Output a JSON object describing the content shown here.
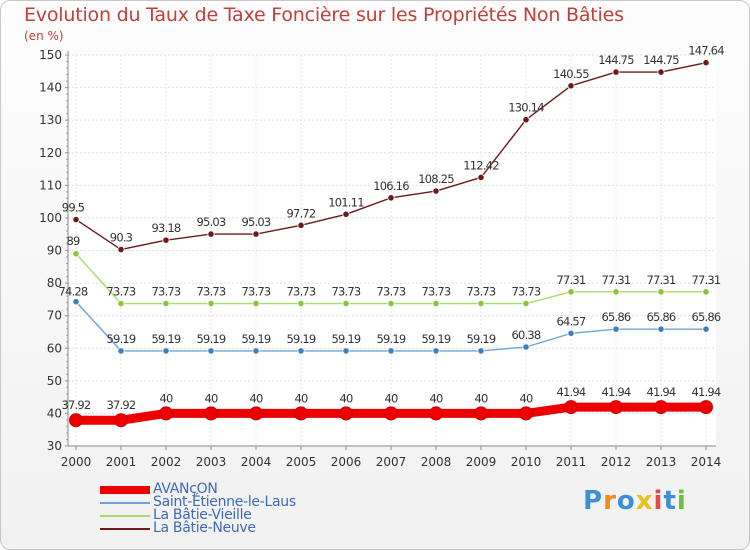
{
  "chart_data": {
    "type": "line",
    "title": "Evolution du Taux de Taxe Foncière sur les Propriétés Non Bâties",
    "ylabel": "(en %)",
    "xlabel": "",
    "categories": [
      "2000",
      "2001",
      "2002",
      "2003",
      "2004",
      "2005",
      "2006",
      "2007",
      "2008",
      "2009",
      "2010",
      "2011",
      "2012",
      "2013",
      "2014"
    ],
    "ylim": [
      30,
      150
    ],
    "yticks": [
      30,
      40,
      50,
      60,
      70,
      80,
      90,
      100,
      110,
      120,
      130,
      140,
      150
    ],
    "grid": true,
    "legend_position": "bottom-left",
    "series": [
      {
        "name": "La Bâtie-Neuve",
        "color": "#6e1a1a",
        "marker_color": "#6e1a1a",
        "line_style": "thin",
        "values": [
          99.5,
          90.3,
          93.18,
          95.03,
          95.03,
          97.72,
          101.11,
          106.16,
          108.25,
          112.42,
          130.14,
          140.55,
          144.75,
          144.75,
          147.64
        ],
        "labels": [
          "99.5",
          "90.3",
          "93.18",
          "95.03",
          "95.03",
          "97.72",
          "101.11",
          "106.16",
          "108.25",
          "112.42",
          "130.14",
          "140.55",
          "144.75",
          "144.75",
          "147.64"
        ]
      },
      {
        "name": "La Bâtie-Vieille",
        "color": "#a6dc6e",
        "marker_color": "#86c63e",
        "line_style": "thin",
        "values": [
          89,
          73.73,
          73.73,
          73.73,
          73.73,
          73.73,
          73.73,
          73.73,
          73.73,
          73.73,
          73.73,
          77.31,
          77.31,
          77.31,
          77.31
        ],
        "labels": [
          "89",
          "73.73",
          "73.73",
          "73.73",
          "73.73",
          "73.73",
          "73.73",
          "73.73",
          "73.73",
          "73.73",
          "73.73",
          "77.31",
          "77.31",
          "77.31",
          "77.31"
        ]
      },
      {
        "name": "Saint-Étienne-le-Laus",
        "color": "#6fa3d6",
        "marker_color": "#3f7fc0",
        "line_style": "thin",
        "values": [
          74.28,
          59.19,
          59.19,
          59.19,
          59.19,
          59.19,
          59.19,
          59.19,
          59.19,
          59.19,
          60.38,
          64.57,
          65.86,
          65.86,
          65.86
        ],
        "labels": [
          "74.28",
          "59.19",
          "59.19",
          "59.19",
          "59.19",
          "59.19",
          "59.19",
          "59.19",
          "59.19",
          "59.19",
          "60.38",
          "64.57",
          "65.86",
          "65.86",
          "65.86"
        ]
      },
      {
        "name": "AVANçON",
        "color": "#ee0000",
        "marker_color": "#ee0000",
        "line_style": "thick",
        "values": [
          37.92,
          37.92,
          40,
          40,
          40,
          40,
          40,
          40,
          40,
          40,
          40,
          41.94,
          41.94,
          41.94,
          41.94
        ],
        "labels": [
          "37.92",
          "37.92",
          "40",
          "40",
          "40",
          "40",
          "40",
          "40",
          "40",
          "40",
          "40",
          "41.94",
          "41.94",
          "41.94",
          "41.94"
        ]
      }
    ]
  },
  "legend": [
    {
      "label": "AVANçON",
      "color": "#ee0000",
      "thick": true
    },
    {
      "label": "Saint-Étienne-le-Laus",
      "color": "#6fa3d6",
      "thick": false
    },
    {
      "label": "La Bâtie-Vieille",
      "color": "#a6dc6e",
      "thick": false
    },
    {
      "label": "La Bâtie-Neuve",
      "color": "#6e1a1a",
      "thick": false
    }
  ],
  "brand": {
    "logo_text": "Proxiti",
    "letter_colors": [
      "#3d8fd8",
      "#f08a1c",
      "#3d8fd8",
      "#e8c21a",
      "#e04c4c",
      "#3d8fd8",
      "#6cbf3a"
    ]
  }
}
